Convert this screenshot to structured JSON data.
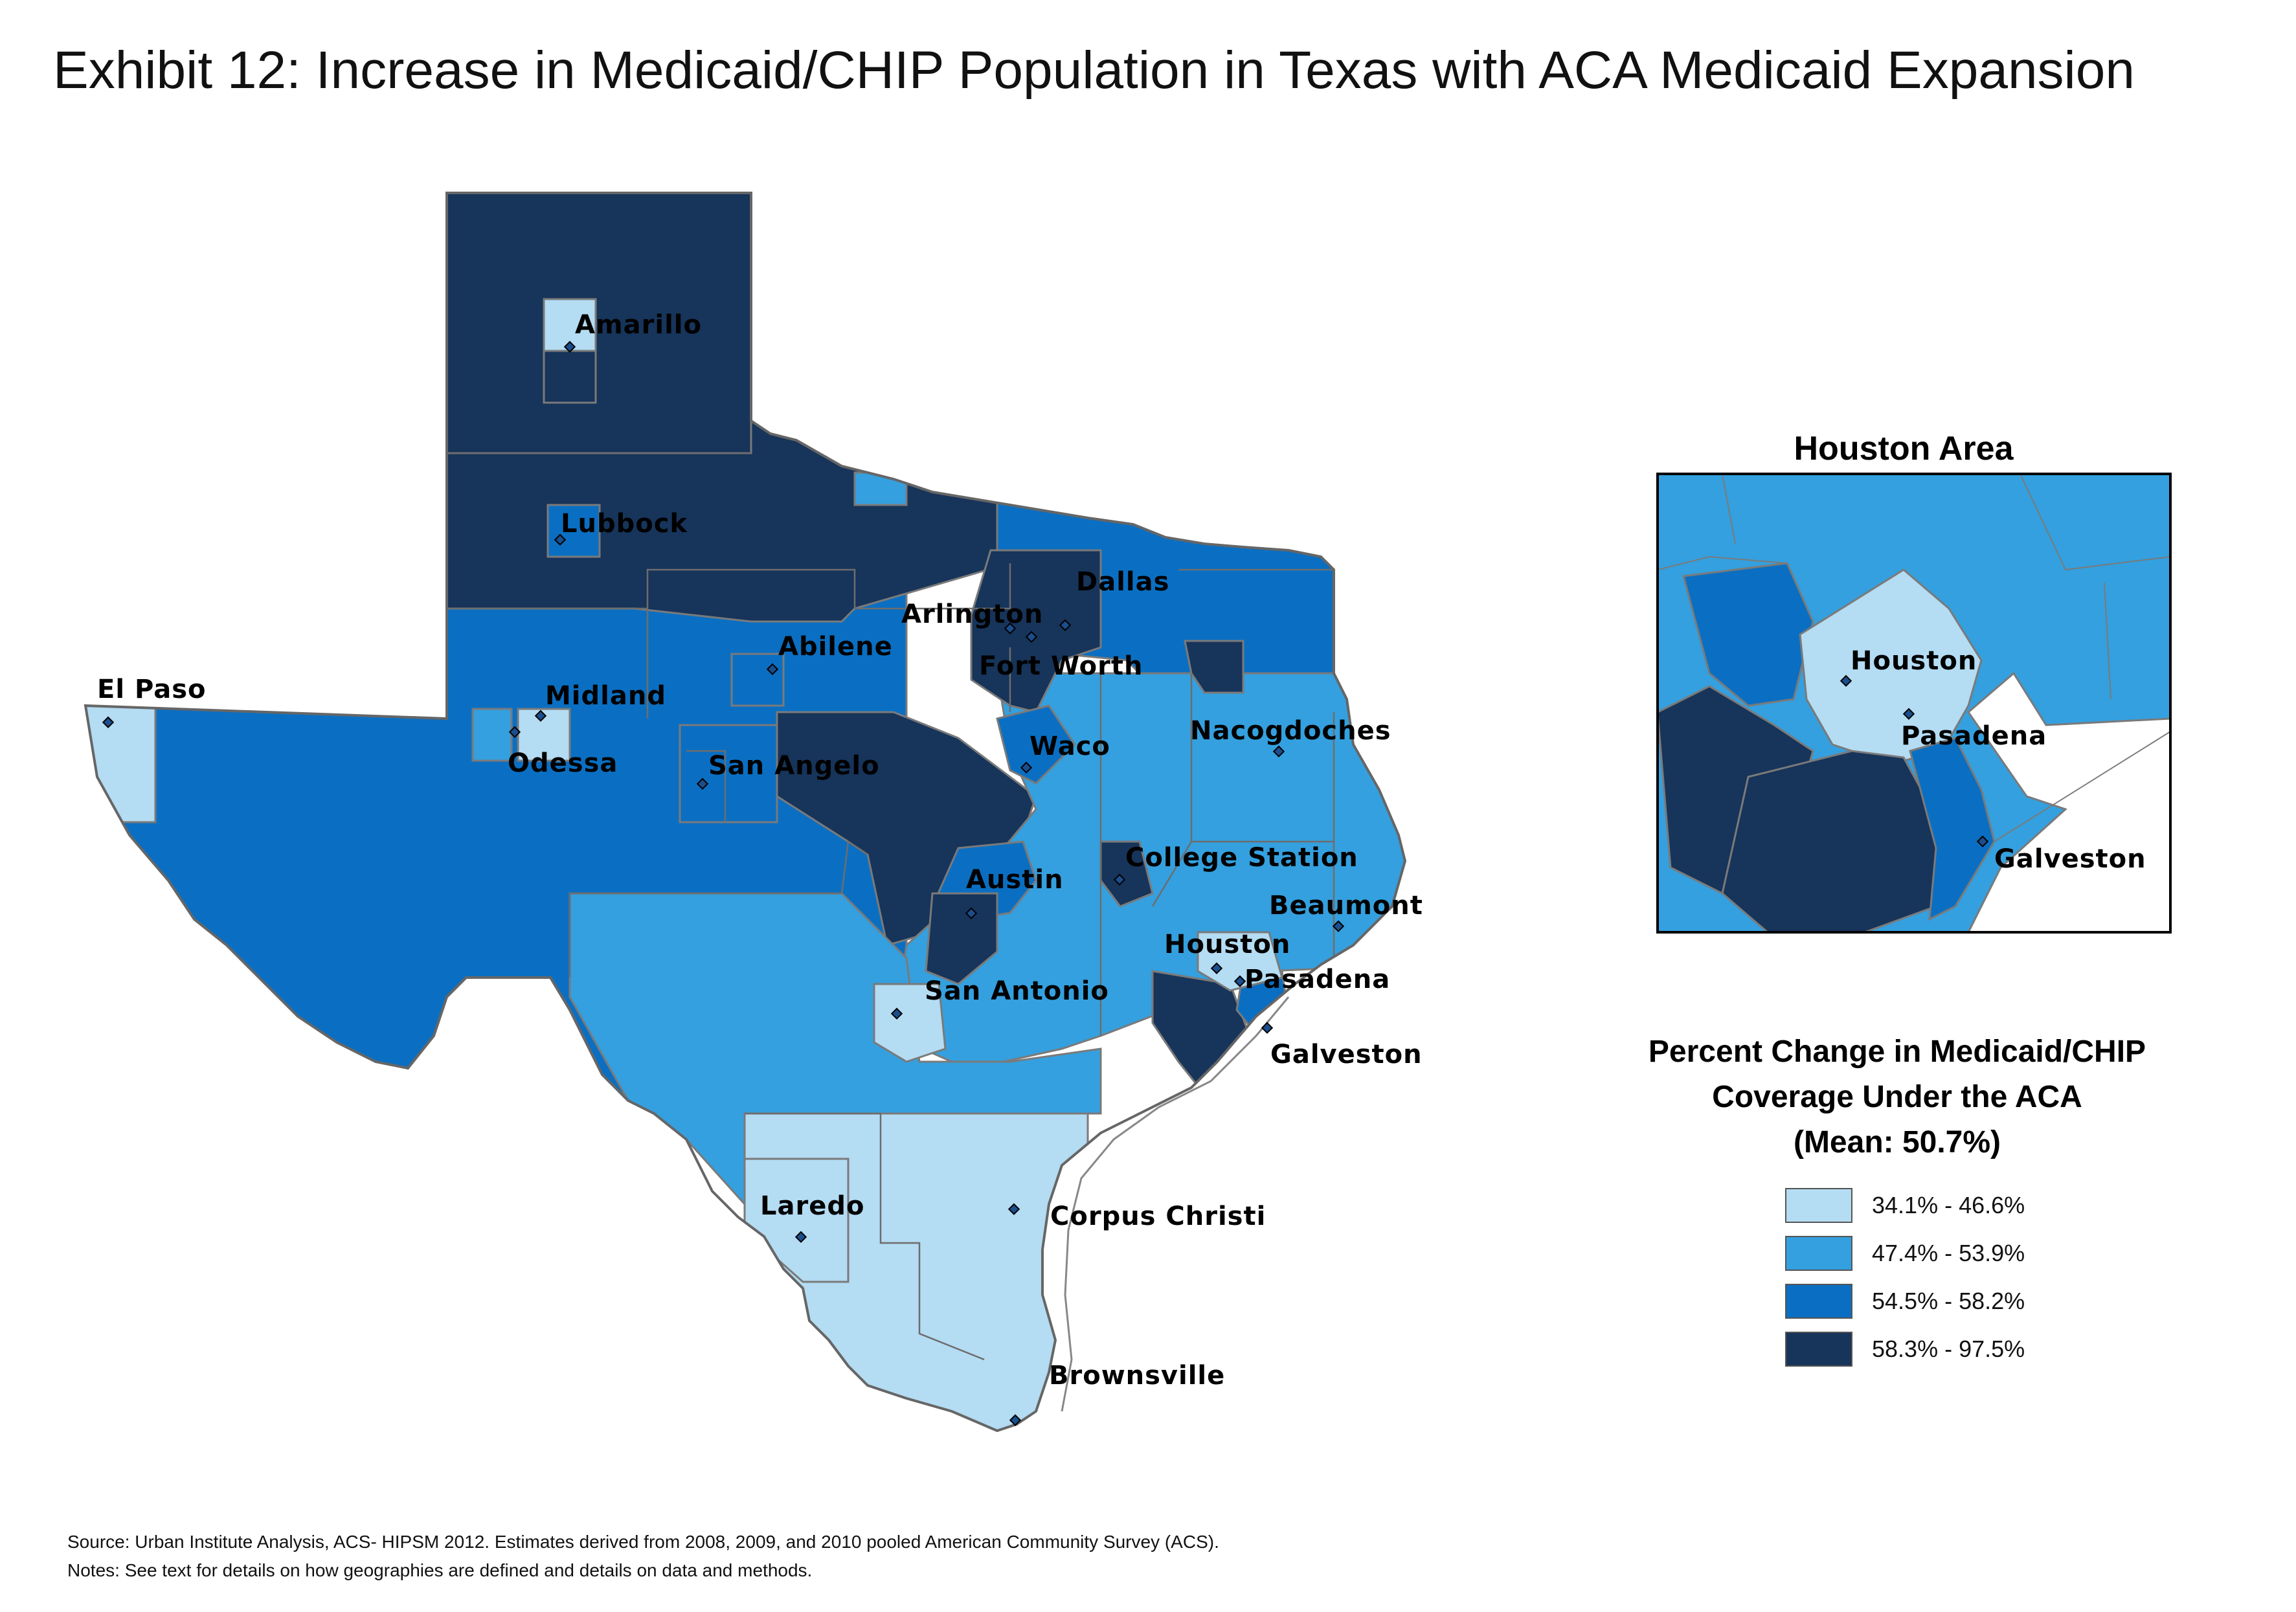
{
  "title": "Exhibit 12: Increase in Medicaid/CHIP Population in Texas with ACA Medicaid Expansion",
  "map": {
    "cities": [
      "Amarillo",
      "Lubbock",
      "Dallas",
      "Arlington",
      "Abilene",
      "Fort Worth",
      "El Paso",
      "Midland",
      "Nacogdoches",
      "Odessa",
      "San Angelo",
      "Waco",
      "College Station",
      "Austin",
      "Beaumont",
      "Houston",
      "Pasadena",
      "San Antonio",
      "Galveston",
      "Laredo",
      "Corpus Christi",
      "Brownsville"
    ]
  },
  "inset": {
    "title": "Houston Area",
    "cities": [
      "Houston",
      "Pasadena",
      "Galveston"
    ]
  },
  "legend": {
    "title_line1": "Percent Change in Medicaid/CHIP",
    "title_line2": "Coverage Under the ACA",
    "title_line3": "(Mean: 50.7%)",
    "classes": [
      {
        "label": "34.1% - 46.6%",
        "color": "#b4dcf3"
      },
      {
        "label": "47.4% - 53.9%",
        "color": "#34a0df"
      },
      {
        "label": "54.5% - 58.2%",
        "color": "#0a6fc2"
      },
      {
        "label": "58.3% - 97.5%",
        "color": "#17345a"
      }
    ]
  },
  "notes": {
    "source": "Source: Urban Institute Analysis, ACS- HIPSM 2012. Estimates derived from 2008, 2009, and 2010 pooled American Community Survey (ACS).",
    "notes": "Notes: See text for details on how geographies are defined and details on data and methods."
  }
}
